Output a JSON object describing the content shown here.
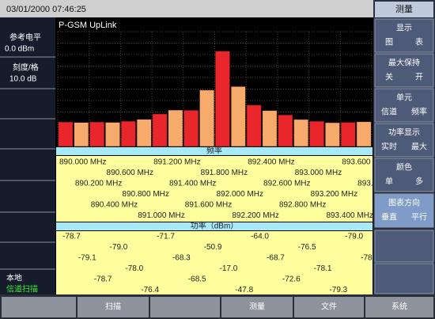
{
  "header": {
    "datetime": "03/01/2000 07:46:25"
  },
  "left_panel": {
    "ref_label": "参考电平",
    "ref_value": "0.0 dBm",
    "scale_label": "刻度/格",
    "scale_value": "10.0 dB",
    "mode": "本地",
    "scan": "信道扫描"
  },
  "chart_data": {
    "type": "bar",
    "title": "P-GSM UpLink",
    "categories": [
      "890.000 MHz",
      "890.200 MHz",
      "890.400 MHz",
      "890.600 MHz",
      "890.800 MHz",
      "891.000 MHz",
      "891.200 MHz",
      "891.400 MHz",
      "891.600 MHz",
      "891.800 MHz",
      "892.000 MHz",
      "892.200 MHz",
      "892.400 MHz",
      "892.600 MHz",
      "892.800 MHz",
      "893.000 MHz",
      "893.200 MHz",
      "893.400 MHz",
      "893.600 MHz",
      "893.800 MHz"
    ],
    "values": [
      -78.7,
      -79.1,
      -78.7,
      -79.0,
      -78.0,
      -76.4,
      -71.7,
      -68.3,
      -68.5,
      -50.9,
      -17.0,
      -47.8,
      -64.0,
      -68.7,
      -72.6,
      -76.5,
      -78.1,
      -79.3,
      -79.0,
      -78.5
    ],
    "value_labels": [
      "-78.7",
      "-79.1",
      "-78.7",
      "-79.0",
      "-78.0",
      "-76.4",
      "-71.7",
      "-68.3",
      "-68.5",
      "-50.9",
      "-17.0",
      "-47.8",
      "-64.0",
      "-68.7",
      "-72.6",
      "-76.5",
      "-78.1",
      "-79.3",
      "-79.0",
      "-78.5"
    ],
    "colors": [
      "#e8262b",
      "#f6ab6c",
      "#e8262b",
      "#f6ab6c",
      "#e8262b",
      "#f6ab6c",
      "#e8262b",
      "#f6ab6c",
      "#e8262b",
      "#f6ab6c",
      "#e8262b",
      "#f6ab6c",
      "#e8262b",
      "#f6ab6c",
      "#e8262b",
      "#f6ab6c",
      "#e8262b",
      "#f6ab6c",
      "#e8262b",
      "#f6ab6c"
    ],
    "ylim": [
      -100,
      0
    ],
    "yticks": [
      -100,
      -90,
      -80,
      -70,
      -60,
      -50,
      -40,
      -30,
      -20,
      -10,
      0
    ],
    "grid": true,
    "frequency_heading": "频率",
    "power_heading": "功率（dBm）"
  },
  "menu": {
    "title": "测量",
    "buttons": [
      {
        "label": "显示",
        "options": [
          "图",
          "表"
        ]
      },
      {
        "label": "最大保持",
        "options": [
          "关",
          "开"
        ]
      },
      {
        "label": "单元",
        "options": [
          "信道",
          "频率"
        ]
      },
      {
        "label": "功率显示",
        "options": [
          "实时",
          "最大"
        ]
      },
      {
        "label": "颜色",
        "options": [
          "单",
          "多"
        ]
      },
      {
        "label": "图表方向",
        "options": [
          "垂直",
          "平行"
        ]
      }
    ]
  },
  "softkeys": [
    "扫描",
    "测量",
    "文件",
    "系统"
  ]
}
